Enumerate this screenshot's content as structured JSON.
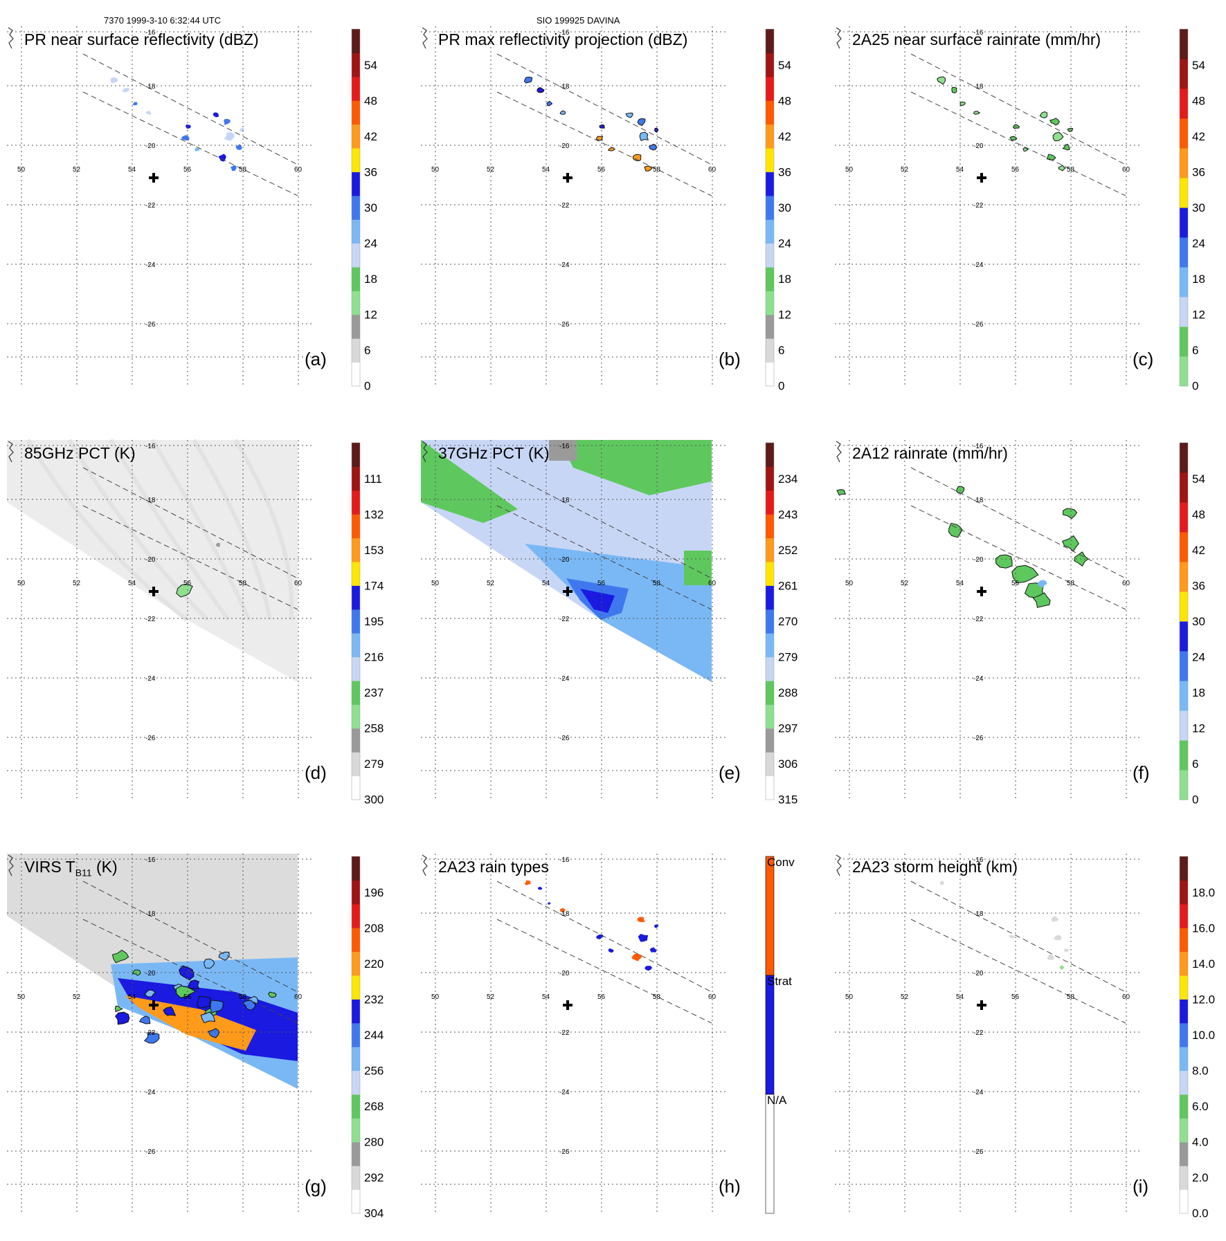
{
  "header": {
    "left": "7370 1999-3-10 6:32:44 UTC",
    "middle": "SIO 199925 DAVINA"
  },
  "map": {
    "lon_ticks": [
      "50",
      "52",
      "54",
      "56",
      "58",
      "60"
    ],
    "lat_ticks": [
      "-16",
      "-18",
      "-20",
      "-22",
      "-24",
      "-26"
    ],
    "storm_marker": "cross-icon",
    "swath_lines": "dashed"
  },
  "colors": {
    "white": "#ffffff",
    "light_gray": "#d9d9d9",
    "gray": "#9a9a9a",
    "light_green": "#8ee08e",
    "green": "#5ec85e",
    "pale_blue": "#c8d6f5",
    "light_blue": "#7ab8f5",
    "mid_blue": "#3f78ee",
    "blue": "#1a1ae0",
    "yellow": "#ffe600",
    "orange": "#ff9a1a",
    "dark_orange": "#ff5a00",
    "red": "#e61a1a",
    "dark_red": "#a01414",
    "brown": "#5c1a1a"
  },
  "chart_data": [
    {
      "type": "heatmap",
      "label": "(a)",
      "title": "PR near surface reflectivity (dBZ)",
      "colorbar": {
        "ticks": [
          "54",
          "48",
          "42",
          "36",
          "30",
          "24",
          "18",
          "12",
          "6",
          "0"
        ],
        "range": [
          0,
          60
        ]
      }
    },
    {
      "type": "heatmap",
      "label": "(b)",
      "title": "PR max reflectivity projection (dBZ)",
      "colorbar": {
        "ticks": [
          "54",
          "48",
          "42",
          "36",
          "30",
          "24",
          "18",
          "12",
          "6",
          "0"
        ],
        "range": [
          0,
          60
        ]
      }
    },
    {
      "type": "heatmap",
      "label": "(c)",
      "title": "2A25 near surface rainrate (mm/hr)",
      "colorbar": {
        "ticks": [
          "54",
          "48",
          "42",
          "36",
          "30",
          "24",
          "18",
          "12",
          "6",
          "0"
        ],
        "range": [
          0,
          60
        ]
      }
    },
    {
      "type": "heatmap",
      "label": "(d)",
      "title": "85GHz PCT (K)",
      "colorbar": {
        "ticks": [
          "111",
          "132",
          "153",
          "174",
          "195",
          "216",
          "237",
          "258",
          "279",
          "300"
        ],
        "range": [
          90,
          300
        ]
      }
    },
    {
      "type": "heatmap",
      "label": "(e)",
      "title": "37GHz PCT (K)",
      "colorbar": {
        "ticks": [
          "234",
          "243",
          "252",
          "261",
          "270",
          "279",
          "288",
          "297",
          "306",
          "315"
        ],
        "range": [
          225,
          315
        ]
      }
    },
    {
      "type": "heatmap",
      "label": "(f)",
      "title": "2A12 rainrate (mm/hr)",
      "colorbar": {
        "ticks": [
          "54",
          "48",
          "42",
          "36",
          "30",
          "24",
          "18",
          "12",
          "6",
          "0"
        ],
        "range": [
          0,
          60
        ]
      }
    },
    {
      "type": "heatmap",
      "label": "(g)",
      "title": "VIRS T",
      "title_sub": "B11",
      "title_tail": " (K)",
      "colorbar": {
        "ticks": [
          "196",
          "208",
          "220",
          "232",
          "244",
          "256",
          "268",
          "280",
          "292",
          "304"
        ],
        "range": [
          184,
          304
        ]
      }
    },
    {
      "type": "heatmap",
      "label": "(h)",
      "title": "2A23 rain types",
      "colorbar": {
        "ticks": [
          "Conv",
          "Strat",
          "N/A"
        ],
        "categorical": true
      }
    },
    {
      "type": "heatmap",
      "label": "(i)",
      "title": "2A23 storm height (km)",
      "colorbar": {
        "ticks": [
          "18.0",
          "16.0",
          "14.0",
          "12.0",
          "10.0",
          "8.0",
          "6.0",
          "4.0",
          "2.0",
          "0.0"
        ],
        "range": [
          0,
          20
        ]
      }
    }
  ]
}
